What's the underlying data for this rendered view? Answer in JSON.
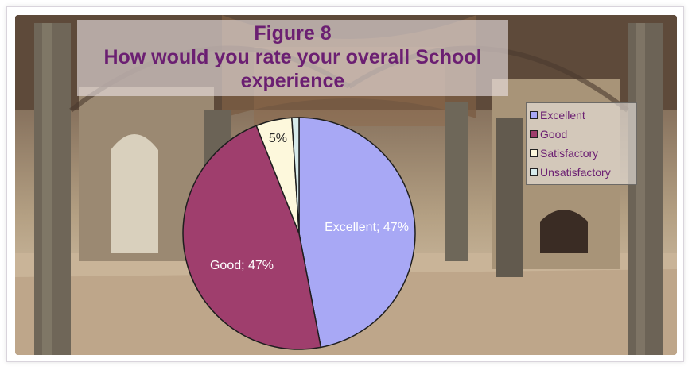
{
  "colors": {
    "excellent": "#a8a8f5",
    "good": "#9f3e6d",
    "satisfactory": "#fdf8dc",
    "unsatisfactory": "#d7ebec",
    "title": "#6b1f72"
  },
  "chart_data": {
    "type": "pie",
    "title": [
      "Figure 8",
      "How would you rate your overall School",
      "experience"
    ],
    "slices": [
      {
        "name": "Excellent",
        "value": 47,
        "label": "Excellent; 47%",
        "color": "#a8a8f5",
        "label_color": "#ffffff"
      },
      {
        "name": "Good",
        "value": 47,
        "label": "Good; 47%",
        "color": "#9f3e6d",
        "label_color": "#ffffff"
      },
      {
        "name": "Satisfactory",
        "value": 5,
        "label": "5%",
        "color": "#fdf8dc",
        "label_color": "#2a2a2a"
      },
      {
        "name": "Unsatisfactory",
        "value": 1,
        "label": "",
        "color": "#d7ebec",
        "label_color": "#2a2a2a"
      }
    ],
    "legend_position": "right",
    "legend": [
      "Excellent",
      "Good",
      "Satisfactory",
      "Unsatisfactory"
    ]
  }
}
